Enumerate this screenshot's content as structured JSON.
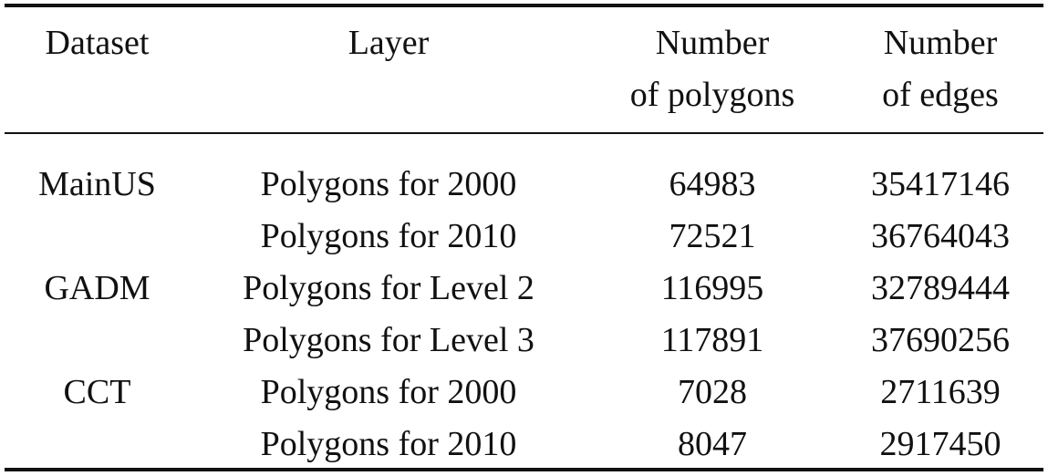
{
  "table": {
    "headers": {
      "dataset": "Dataset",
      "layer": "Layer",
      "polygons_line1": "Number",
      "polygons_line2": "of polygons",
      "edges_line1": "Number",
      "edges_line2": "of edges"
    },
    "rows": [
      {
        "dataset": "MainUS",
        "layer": "Polygons for 2000",
        "polygons": "64983",
        "edges": "35417146"
      },
      {
        "dataset": "",
        "layer": "Polygons for 2010",
        "polygons": "72521",
        "edges": "36764043"
      },
      {
        "dataset": "GADM",
        "layer": "Polygons for Level 2",
        "polygons": "116995",
        "edges": "32789444"
      },
      {
        "dataset": "",
        "layer": "Polygons for Level 3",
        "polygons": "117891",
        "edges": "37690256"
      },
      {
        "dataset": "CCT",
        "layer": "Polygons for 2000",
        "polygons": "7028",
        "edges": "2711639"
      },
      {
        "dataset": "",
        "layer": "Polygons for 2010",
        "polygons": "8047",
        "edges": "2917450"
      }
    ]
  }
}
